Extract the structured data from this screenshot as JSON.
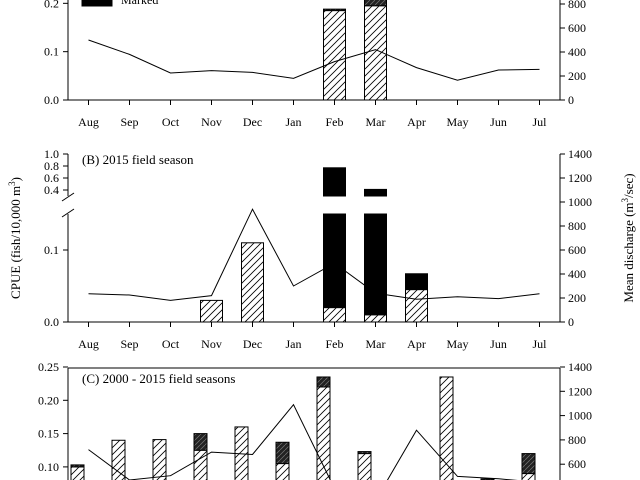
{
  "legend": {
    "marked_label": "Marked"
  },
  "colors": {
    "line": "#000000",
    "marked": "#000000",
    "hatch_bg": "#ffffff"
  },
  "months": [
    "Aug",
    "Sep",
    "Oct",
    "Nov",
    "Dec",
    "Jan",
    "Feb",
    "Mar",
    "Apr",
    "May",
    "Jun",
    "Jul"
  ],
  "chart_data": [
    {
      "type": "bar",
      "panel": "A",
      "title": "",
      "categories": [
        "Aug",
        "Sep",
        "Oct",
        "Nov",
        "Dec",
        "Jan",
        "Feb",
        "Mar",
        "Apr",
        "May",
        "Jun",
        "Jul"
      ],
      "y_ticks": [
        "0.0",
        "0.1",
        "0.2"
      ],
      "y2_ticks": [
        "0",
        "200",
        "400",
        "600",
        "800"
      ],
      "series": [
        {
          "name": "",
          "kind": "bar-hatched",
          "values": [
            0,
            0,
            0,
            0,
            0,
            0,
            0.185,
            0.195,
            0,
            0,
            0,
            0
          ]
        },
        {
          "name": "Marked",
          "kind": "bar-solid",
          "values": [
            0,
            0,
            0,
            0,
            0,
            0,
            0.003,
            0.03,
            0,
            0,
            0,
            0
          ]
        },
        {
          "name": "",
          "kind": "line",
          "axis": "right",
          "values": [
            500,
            380,
            225,
            245,
            230,
            180,
            320,
            420,
            270,
            165,
            250,
            255
          ]
        }
      ]
    },
    {
      "type": "bar",
      "panel": "B",
      "title": "(B) 2015 field season",
      "categories": [
        "Aug",
        "Sep",
        "Oct",
        "Nov",
        "Dec",
        "Jan",
        "Feb",
        "Mar",
        "Apr",
        "May",
        "Jun",
        "Jul"
      ],
      "ylabel": "CPUE (fish/10,000 m",
      "ylabel_sup": "3",
      "ylabel_close": ")",
      "y2label": "Mean discharge (m",
      "y2label_sup": "3",
      "y2label_close": "/sec)",
      "y_ticks_lower": [
        "0.0",
        "0.1"
      ],
      "y_ticks_upper": [
        "0.4",
        "0.6",
        "0.8",
        "1.0"
      ],
      "y2_ticks": [
        "0",
        "200",
        "400",
        "600",
        "800",
        "1000",
        "1200",
        "1400"
      ],
      "series": [
        {
          "name": "",
          "kind": "bar-hatched",
          "values": [
            0,
            0,
            0,
            0.03,
            0.11,
            0,
            0.02,
            0.01,
            0.045,
            0,
            0,
            0
          ]
        },
        {
          "name": "",
          "kind": "bar-solid",
          "values": [
            0,
            0,
            0,
            0,
            0,
            0,
            0.75,
            0.4,
            0.022,
            0,
            0,
            0
          ]
        },
        {
          "name": "",
          "kind": "line",
          "axis": "right",
          "values": [
            235,
            225,
            180,
            220,
            940,
            300,
            490,
            240,
            190,
            210,
            195,
            235
          ]
        }
      ]
    },
    {
      "type": "bar",
      "panel": "C",
      "title": "(C) 2000 - 2015 field seasons",
      "y_ticks": [
        "0.10",
        "0.15",
        "0.20",
        "0.25"
      ],
      "y2_ticks": [
        "600",
        "800",
        "1000",
        "1200",
        "1400"
      ],
      "series": [
        {
          "name": "",
          "kind": "bar-hatched",
          "values": [
            0.1,
            0.14,
            0.141,
            0.125,
            0.16,
            0.105,
            0.22,
            0.12,
            0,
            0.235,
            0.08,
            0.09
          ]
        },
        {
          "name": "",
          "kind": "bar-solid",
          "values": [
            0.003,
            0,
            0,
            0.025,
            0,
            0.032,
            0.015,
            0.003,
            0,
            0,
            0.002,
            0.03
          ]
        },
        {
          "name": "",
          "kind": "line",
          "axis": "right",
          "values": [
            720,
            470,
            505,
            700,
            680,
            1090,
            400,
            300,
            880,
            500,
            480,
            450
          ]
        }
      ]
    }
  ]
}
